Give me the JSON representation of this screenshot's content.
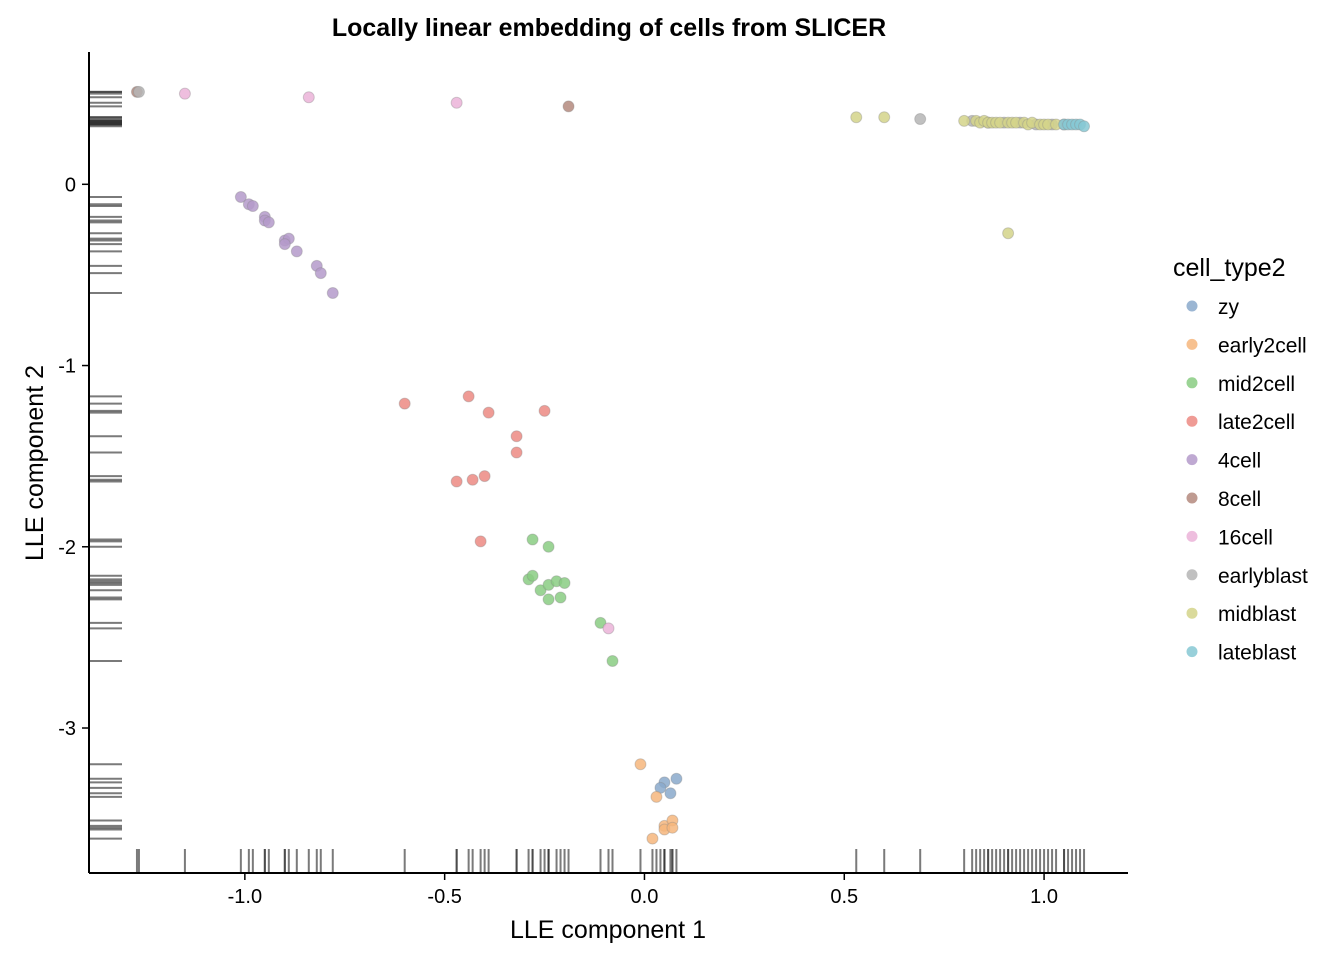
{
  "chart_data": {
    "type": "scatter",
    "title": "Locally linear embedding of cells from SLICER",
    "xlabel": "LLE component 1",
    "ylabel": "LLE component 2",
    "xlim": [
      -1.39,
      1.21
    ],
    "ylim": [
      -3.8,
      0.73
    ],
    "xticks": [
      -1.0,
      -0.5,
      0.0,
      0.5,
      1.0
    ],
    "xtick_labels": [
      "-1.0",
      "-0.5",
      "0.0",
      "0.5",
      "1.0"
    ],
    "yticks": [
      0,
      -1,
      -2,
      -3
    ],
    "ytick_labels": [
      "0",
      "-1",
      "-2",
      "-3"
    ],
    "grid": false,
    "rug": true,
    "legend": {
      "title": "cell_type2",
      "placement": "right"
    },
    "series": [
      {
        "name": "zy",
        "color": "#89A9CB",
        "points": [
          [
            0.05,
            -3.3
          ],
          [
            0.04,
            -3.33
          ],
          [
            0.065,
            -3.36
          ],
          [
            0.08,
            -3.28
          ]
        ]
      },
      {
        "name": "early2cell",
        "color": "#F6B67C",
        "points": [
          [
            -0.01,
            -3.2
          ],
          [
            0.03,
            -3.38
          ],
          [
            0.05,
            -3.54
          ],
          [
            0.05,
            -3.56
          ],
          [
            0.07,
            -3.51
          ],
          [
            0.07,
            -3.55
          ],
          [
            0.02,
            -3.61
          ]
        ]
      },
      {
        "name": "mid2cell",
        "color": "#8ACD82",
        "points": [
          [
            -0.28,
            -1.96
          ],
          [
            -0.24,
            -2.0
          ],
          [
            -0.29,
            -2.18
          ],
          [
            -0.28,
            -2.16
          ],
          [
            -0.26,
            -2.24
          ],
          [
            -0.24,
            -2.21
          ],
          [
            -0.22,
            -2.19
          ],
          [
            -0.2,
            -2.2
          ],
          [
            -0.24,
            -2.29
          ],
          [
            -0.21,
            -2.28
          ],
          [
            -0.11,
            -2.42
          ],
          [
            -0.08,
            -2.63
          ]
        ]
      },
      {
        "name": "late2cell",
        "color": "#EC8A82",
        "points": [
          [
            -0.6,
            -1.21
          ],
          [
            -0.44,
            -1.17
          ],
          [
            -0.39,
            -1.26
          ],
          [
            -0.25,
            -1.25
          ],
          [
            -0.32,
            -1.39
          ],
          [
            -0.32,
            -1.48
          ],
          [
            -0.47,
            -1.64
          ],
          [
            -0.43,
            -1.63
          ],
          [
            -0.4,
            -1.61
          ],
          [
            -0.41,
            -1.97
          ]
        ]
      },
      {
        "name": "4cell",
        "color": "#B49ACA",
        "points": [
          [
            -1.01,
            -0.07
          ],
          [
            -0.99,
            -0.11
          ],
          [
            -0.98,
            -0.12
          ],
          [
            -0.95,
            -0.18
          ],
          [
            -0.95,
            -0.2
          ],
          [
            -0.94,
            -0.21
          ],
          [
            -0.9,
            -0.31
          ],
          [
            -0.89,
            -0.3
          ],
          [
            -0.9,
            -0.33
          ],
          [
            -0.87,
            -0.37
          ],
          [
            -0.82,
            -0.45
          ],
          [
            -0.81,
            -0.49
          ],
          [
            -0.78,
            -0.6
          ]
        ]
      },
      {
        "name": "8cell",
        "color": "#B48A7E",
        "points": [
          [
            -1.27,
            0.51
          ],
          [
            -0.19,
            0.43
          ]
        ]
      },
      {
        "name": "16cell",
        "color": "#EBB3D8",
        "points": [
          [
            -1.15,
            0.5
          ],
          [
            -0.84,
            0.48
          ],
          [
            -0.47,
            0.45
          ],
          [
            -0.09,
            -2.45
          ]
        ]
      },
      {
        "name": "earlyblast",
        "color": "#B5B5B5",
        "points": [
          [
            -1.265,
            0.51
          ],
          [
            0.69,
            0.36
          ],
          [
            0.82,
            0.35
          ],
          [
            0.86,
            0.34
          ],
          [
            0.9,
            0.34
          ],
          [
            0.94,
            0.34
          ],
          [
            0.98,
            0.33
          ],
          [
            1.02,
            0.33
          ],
          [
            1.05,
            0.33
          ]
        ]
      },
      {
        "name": "midblast",
        "color": "#D4D48A",
        "points": [
          [
            0.53,
            0.37
          ],
          [
            0.6,
            0.37
          ],
          [
            0.8,
            0.35
          ],
          [
            0.83,
            0.35
          ],
          [
            0.84,
            0.34
          ],
          [
            0.85,
            0.35
          ],
          [
            0.86,
            0.34
          ],
          [
            0.87,
            0.34
          ],
          [
            0.88,
            0.34
          ],
          [
            0.89,
            0.34
          ],
          [
            0.91,
            0.34
          ],
          [
            0.92,
            0.34
          ],
          [
            0.93,
            0.34
          ],
          [
            0.95,
            0.34
          ],
          [
            0.96,
            0.33
          ],
          [
            0.97,
            0.34
          ],
          [
            0.99,
            0.33
          ],
          [
            1.0,
            0.33
          ],
          [
            1.01,
            0.33
          ],
          [
            1.03,
            0.33
          ],
          [
            0.91,
            -0.27
          ]
        ]
      },
      {
        "name": "lateblast",
        "color": "#86C8D4",
        "points": [
          [
            1.05,
            0.33
          ],
          [
            1.06,
            0.33
          ],
          [
            1.07,
            0.33
          ],
          [
            1.08,
            0.33
          ],
          [
            1.09,
            0.33
          ],
          [
            1.1,
            0.32
          ]
        ]
      }
    ]
  }
}
